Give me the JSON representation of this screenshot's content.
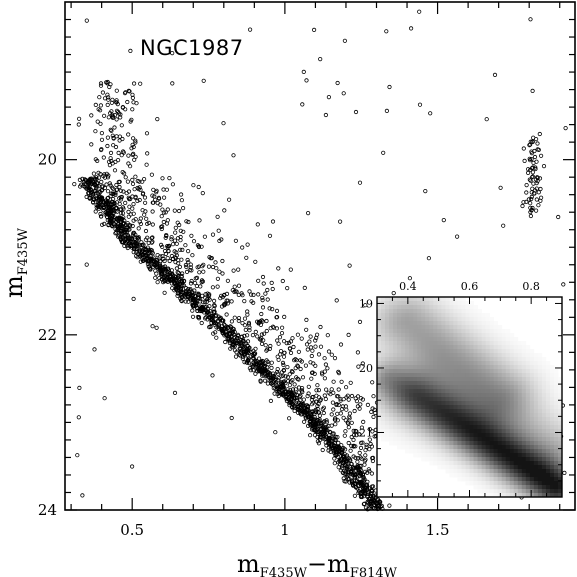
{
  "chart_data": {
    "type": "scatter",
    "title": "NGC1987",
    "xlabel": {
      "main": "m",
      "sub1": "F435W",
      "minus": "−",
      "main2": "m",
      "sub2": "F814W"
    },
    "ylabel": {
      "main": "m",
      "sub": "F435W"
    },
    "xlim": [
      0.28,
      1.95
    ],
    "ylim": [
      24.0,
      18.2
    ],
    "x_ticks": [
      {
        "value": 0.5,
        "label": "0.5"
      },
      {
        "value": 1.0,
        "label": "1"
      },
      {
        "value": 1.5,
        "label": "1.5"
      }
    ],
    "y_ticks": [
      {
        "value": 20,
        "label": "20"
      },
      {
        "value": 22,
        "label": "22"
      },
      {
        "value": 24,
        "label": "24"
      }
    ],
    "features": {
      "main_sequence_ridge": [
        [
          0.36,
          20.3
        ],
        [
          0.5,
          20.95
        ],
        [
          0.7,
          21.6
        ],
        [
          0.9,
          22.3
        ],
        [
          1.1,
          23.0
        ],
        [
          1.3,
          23.95
        ]
      ],
      "upper_main_sequence_box": {
        "x": [
          0.36,
          0.72
        ],
        "y": [
          19.1,
          21.4
        ]
      },
      "red_clump": {
        "x": [
          1.76,
          1.86
        ],
        "y": [
          19.8,
          20.6
        ]
      },
      "n_points_approx": 2600
    },
    "inset": {
      "type": "heatmap",
      "description_source": "density map (Hess diagram) of the upper main sequence",
      "xlim": [
        0.3,
        0.9
      ],
      "ylim": [
        22.0,
        18.9
      ],
      "x_ticks": [
        {
          "value": 0.4,
          "label": "0.4"
        },
        {
          "value": 0.6,
          "label": "0.6"
        },
        {
          "value": 0.8,
          "label": "0.8"
        }
      ],
      "y_ticks": [
        {
          "value": 19,
          "label": "19"
        },
        {
          "value": 20,
          "label": "20"
        },
        {
          "value": 21,
          "label": "21"
        }
      ],
      "components": [
        {
          "x0": 0.34,
          "y0": 20.2,
          "x1": 0.88,
          "y1": 21.85,
          "width": 0.055,
          "peak": 0.9
        },
        {
          "x0": 0.4,
          "y0": 19.3,
          "x1": 0.7,
          "y1": 20.4,
          "width": 0.08,
          "peak": 0.4
        },
        {
          "x0": 0.45,
          "y0": 20.4,
          "x1": 0.85,
          "y1": 21.3,
          "width": 0.09,
          "peak": 0.35
        }
      ]
    }
  }
}
